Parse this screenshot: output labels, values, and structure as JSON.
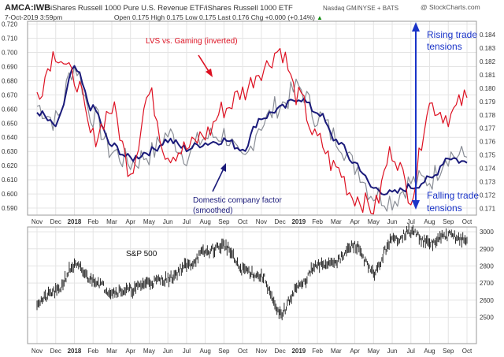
{
  "header": {
    "symbol": "AMCA:IWB",
    "description": "iShares Russell 1000 Pure U.S. Revenue ETF/iShares Russell 1000 ETF",
    "exchange": "Nasdaq GM/NYSE + BATS",
    "watermark": "@ StockCharts.com",
    "date_line": "7-Oct-2019 3:59pm",
    "quote_line": "Open 0.175  High 0.175  Low 0.175  Last 0.176  Chg +0.000 (+0.14%)",
    "quote_arrow": "▲"
  },
  "colors": {
    "red_series": "#dd1122",
    "navy_series": "#1a1a7a",
    "gray_series": "#8a8e96",
    "annotation_blue": "#1a34c8",
    "grid": "#e4e4e4",
    "frame": "#9a9a9a"
  },
  "annotations": {
    "lvs_label": "LVS vs. Gaming (inverted)",
    "domestic_label_1": "Domestic company factor",
    "domestic_label_2": "(smoothed)",
    "rising_1": "Rising trade",
    "rising_2": "tensions",
    "falling_1": "Falling trade",
    "falling_2": "tensions",
    "sp_label": "S&P 500"
  },
  "x_axis_labels": [
    "Nov",
    "Dec",
    "2018",
    "Feb",
    "Mar",
    "Apr",
    "May",
    "Jun",
    "Jul",
    "Aug",
    "Sep",
    "Oct",
    "Nov",
    "Dec",
    "2019",
    "Feb",
    "Mar",
    "Apr",
    "May",
    "Jun",
    "Jul",
    "Aug",
    "Sep",
    "Oct"
  ],
  "chart_data": [
    {
      "type": "line",
      "title": "AMCA:IWB ratio vs. LVS vs. Gaming (inverted)",
      "x": [
        "Nov-2017",
        "Dec-2017",
        "Jan-2018",
        "Feb-2018",
        "Mar-2018",
        "Apr-2018",
        "May-2018",
        "Jun-2018",
        "Jul-2018",
        "Aug-2018",
        "Sep-2018",
        "Oct-2018",
        "Nov-2018",
        "Dec-2018",
        "Jan-2019",
        "Feb-2019",
        "Mar-2019",
        "Apr-2019",
        "May-2019",
        "Jun-2019",
        "Jul-2019",
        "Aug-2019",
        "Sep-2019",
        "Oct-2019"
      ],
      "left_axis": {
        "label": "AMCA:IWB",
        "ticks": [
          0.59,
          0.6,
          0.61,
          0.62,
          0.63,
          0.64,
          0.65,
          0.66,
          0.67,
          0.68,
          0.69,
          0.7,
          0.71,
          0.72
        ],
        "ylim": [
          0.585,
          0.722
        ]
      },
      "right_axis": {
        "label": "LVS vs. Gaming (inverted)",
        "ticks": [
          0.171,
          0.172,
          0.173,
          0.174,
          0.175,
          0.176,
          0.177,
          0.178,
          0.179,
          0.18,
          0.181,
          0.182,
          0.183,
          0.184
        ],
        "ylim": [
          0.1705,
          0.185
        ]
      },
      "series": [
        {
          "name": "AMCA:IWB (daily)",
          "axis": "left",
          "color": "#8a8e96",
          "values": [
            0.662,
            0.652,
            0.69,
            0.655,
            0.63,
            0.622,
            0.628,
            0.642,
            0.628,
            0.64,
            0.642,
            0.622,
            0.65,
            0.663,
            0.675,
            0.655,
            0.64,
            0.62,
            0.6,
            0.596,
            0.608,
            0.61,
            0.628,
            0.626
          ]
        },
        {
          "name": "Domestic company factor (smoothed)",
          "axis": "left",
          "color": "#1a1a7a",
          "values": [
            0.658,
            0.648,
            0.688,
            0.66,
            0.634,
            0.625,
            0.63,
            0.638,
            0.632,
            0.636,
            0.638,
            0.632,
            0.654,
            0.66,
            0.668,
            0.658,
            0.638,
            0.622,
            0.604,
            0.6,
            0.605,
            0.61,
            0.626,
            0.622
          ]
        },
        {
          "name": "LVS vs. Gaming (inverted)",
          "axis": "left",
          "color": "#dd1122",
          "values": [
            0.672,
            0.7,
            0.682,
            0.64,
            0.66,
            0.618,
            0.67,
            0.628,
            0.632,
            0.642,
            0.66,
            0.672,
            0.688,
            0.702,
            0.668,
            0.638,
            0.618,
            0.598,
            0.59,
            0.63,
            0.6,
            0.663,
            0.655,
            0.668
          ]
        }
      ]
    },
    {
      "type": "line",
      "title": "S&P 500",
      "x": [
        "Nov-2017",
        "Dec-2017",
        "Jan-2018",
        "Feb-2018",
        "Mar-2018",
        "Apr-2018",
        "May-2018",
        "Jun-2018",
        "Jul-2018",
        "Aug-2018",
        "Sep-2018",
        "Oct-2018",
        "Nov-2018",
        "Dec-2018",
        "Jan-2019",
        "Feb-2019",
        "Mar-2019",
        "Apr-2019",
        "May-2019",
        "Jun-2019",
        "Jul-2019",
        "Aug-2019",
        "Sep-2019",
        "Oct-2019"
      ],
      "y_axis": {
        "ticks": [
          2500,
          2600,
          2700,
          2800,
          2900,
          3000
        ],
        "ylim": [
          2346,
          3028
        ]
      },
      "series": [
        {
          "name": "S&P 500",
          "color": "#111111",
          "values": [
            2590,
            2650,
            2800,
            2720,
            2650,
            2660,
            2705,
            2725,
            2800,
            2880,
            2920,
            2780,
            2740,
            2520,
            2680,
            2800,
            2830,
            2920,
            2760,
            2950,
            3000,
            2930,
            2980,
            2950
          ]
        }
      ]
    }
  ]
}
